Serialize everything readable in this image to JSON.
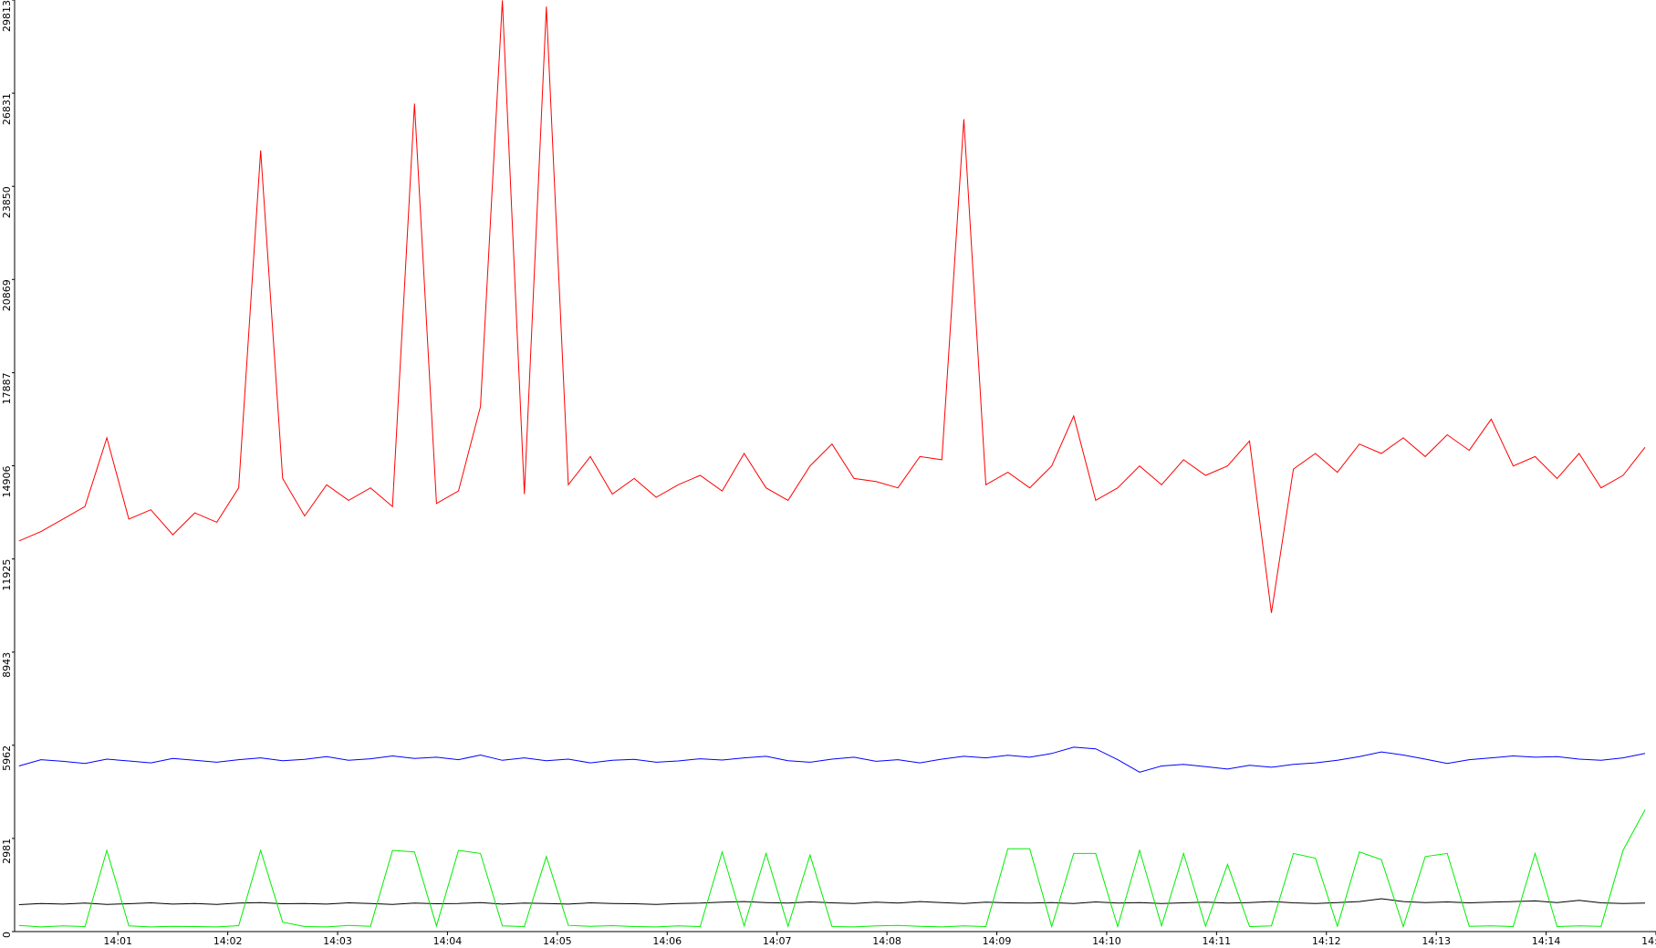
{
  "chart_data": {
    "type": "line",
    "x": [
      840.1,
      840.3,
      840.5,
      840.7,
      840.9,
      841.1,
      841.3,
      841.5,
      841.7,
      841.9,
      842.1,
      842.3,
      842.5,
      842.7,
      842.9,
      843.1,
      843.3,
      843.5,
      843.7,
      843.9,
      844.1,
      844.3,
      844.5,
      844.7,
      844.9,
      845.1,
      845.3,
      845.5,
      845.7,
      845.9,
      846.1,
      846.3,
      846.5,
      846.7,
      846.9,
      847.1,
      847.3,
      847.5,
      847.7,
      847.9,
      848.1,
      848.3,
      848.5,
      848.7,
      848.9,
      849.1,
      849.3,
      849.5,
      849.7,
      849.9,
      850.1,
      850.3,
      850.5,
      850.7,
      850.9,
      851.1,
      851.3,
      851.5,
      851.7,
      851.9,
      852.1,
      852.3,
      852.5,
      852.7,
      852.9,
      853.1,
      853.3,
      853.5,
      853.7,
      853.9,
      854.1,
      854.3,
      854.5,
      854.7,
      854.9
    ],
    "xlim": [
      840.06,
      855.0
    ],
    "xticks": [
      {
        "value": 841,
        "label": "14:01"
      },
      {
        "value": 842,
        "label": "14:02"
      },
      {
        "value": 843,
        "label": "14:03"
      },
      {
        "value": 844,
        "label": "14:04"
      },
      {
        "value": 845,
        "label": "14:05"
      },
      {
        "value": 846,
        "label": "14:06"
      },
      {
        "value": 847,
        "label": "14:07"
      },
      {
        "value": 848,
        "label": "14:08"
      },
      {
        "value": 849,
        "label": "14:09"
      },
      {
        "value": 850,
        "label": "14:10"
      },
      {
        "value": 851,
        "label": "14:11"
      },
      {
        "value": 852,
        "label": "14:12"
      },
      {
        "value": 853,
        "label": "14:13"
      },
      {
        "value": 854,
        "label": "14:14"
      },
      {
        "value": 855,
        "label": "14:15"
      }
    ],
    "ylim": [
      0,
      29813
    ],
    "yticks": [
      0,
      2981,
      5962,
      8943,
      11925,
      14906,
      17887,
      20869,
      23850,
      26831,
      29813
    ],
    "series": [
      {
        "color": "#ff0000",
        "values": [
          12500,
          12800,
          13200,
          13600,
          15800,
          13200,
          13500,
          12700,
          13400,
          13100,
          14200,
          25000,
          14500,
          13300,
          14300,
          13800,
          14200,
          13600,
          26500,
          13700,
          14100,
          16800,
          29800,
          14000,
          29600,
          14300,
          15200,
          14000,
          14500,
          13900,
          14300,
          14600,
          14100,
          15300,
          14200,
          13800,
          14900,
          15600,
          14500,
          14400,
          14200,
          15200,
          15100,
          26000,
          14300,
          14700,
          14200,
          14900,
          16500,
          13800,
          14200,
          14900,
          14300,
          15100,
          14600,
          14900,
          15700,
          10200,
          14800,
          15300,
          14700,
          15600,
          15300,
          15800,
          15200,
          15900,
          15400,
          16400,
          14900,
          15200,
          14500,
          15300,
          14200,
          14600,
          15500
        ]
      },
      {
        "color": "#0000ff",
        "values": [
          5300,
          5500,
          5450,
          5380,
          5520,
          5460,
          5400,
          5540,
          5480,
          5420,
          5500,
          5560,
          5470,
          5510,
          5600,
          5480,
          5530,
          5620,
          5540,
          5580,
          5500,
          5650,
          5480,
          5560,
          5470,
          5520,
          5400,
          5480,
          5510,
          5420,
          5460,
          5530,
          5490,
          5560,
          5610,
          5470,
          5420,
          5520,
          5580,
          5450,
          5500,
          5400,
          5520,
          5610,
          5560,
          5640,
          5580,
          5700,
          5900,
          5850,
          5500,
          5100,
          5300,
          5350,
          5280,
          5200,
          5320,
          5260,
          5350,
          5400,
          5480,
          5600,
          5750,
          5650,
          5520,
          5380,
          5500,
          5560,
          5620,
          5580,
          5600,
          5520,
          5480,
          5560,
          5700
        ]
      },
      {
        "color": "#000000",
        "values": [
          860,
          900,
          880,
          910,
          870,
          890,
          920,
          880,
          900,
          870,
          910,
          930,
          890,
          900,
          880,
          920,
          900,
          870,
          910,
          890,
          900,
          930,
          880,
          910,
          900,
          880,
          920,
          900,
          890,
          870,
          900,
          910,
          940,
          960,
          930,
          910,
          950,
          920,
          900,
          940,
          910,
          960,
          930,
          900,
          940,
          920,
          910,
          930,
          900,
          950,
          910,
          930,
          900,
          920,
          940,
          910,
          930,
          960,
          920,
          900,
          930,
          960,
          1050,
          960,
          930,
          950,
          920,
          940,
          960,
          980,
          930,
          1000,
          920,
          900,
          910
        ]
      },
      {
        "color": "#00ee00",
        "values": [
          200,
          150,
          180,
          160,
          2600,
          180,
          150,
          170,
          160,
          150,
          190,
          2600,
          300,
          160,
          150,
          200,
          170,
          2600,
          2550,
          180,
          2600,
          2500,
          180,
          160,
          2400,
          200,
          170,
          190,
          160,
          150,
          180,
          160,
          2550,
          180,
          2500,
          170,
          2450,
          160,
          150,
          180,
          200,
          170,
          150,
          180,
          160,
          2650,
          2650,
          160,
          2500,
          2500,
          160,
          2600,
          180,
          2500,
          170,
          2150,
          160,
          180,
          2500,
          2350,
          170,
          2550,
          2300,
          160,
          2400,
          2500,
          170,
          180,
          160,
          2500,
          160,
          180,
          170,
          2600,
          3900
        ]
      }
    ]
  }
}
